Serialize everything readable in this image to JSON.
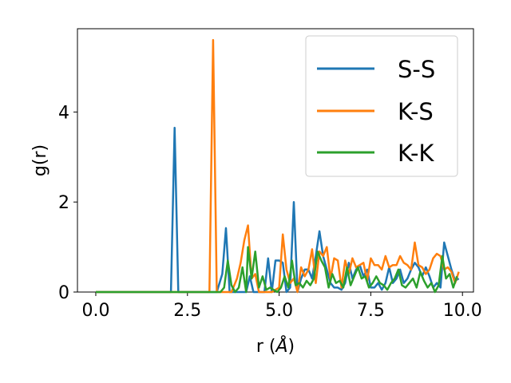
{
  "chart_data": {
    "type": "line",
    "xlabel": "r (",
    "xlabel_unit": "Å",
    "xlabel_close": ")",
    "ylabel": "g(r)",
    "xlim": [
      -0.5,
      10.3
    ],
    "ylim": [
      0,
      5.85
    ],
    "xticks": [
      0.0,
      2.5,
      5.0,
      7.5,
      10.0
    ],
    "xtick_labels": [
      "0.0",
      "2.5",
      "5.0",
      "7.5",
      "10.0"
    ],
    "yticks": [
      0,
      2,
      4
    ],
    "ytick_labels": [
      "0",
      "2",
      "4"
    ],
    "grid": false,
    "legend_position": "top-right",
    "series": [
      {
        "name": "S-S",
        "color": "#1f77b4",
        "points": [
          [
            0,
            0
          ],
          [
            2.0,
            0
          ],
          [
            2.05,
            0
          ],
          [
            2.15,
            3.65
          ],
          [
            2.25,
            0
          ],
          [
            3.2,
            0
          ],
          [
            3.3,
            0
          ],
          [
            3.45,
            0.4
          ],
          [
            3.55,
            1.42
          ],
          [
            3.65,
            0
          ],
          [
            4.1,
            0
          ],
          [
            4.2,
            0.35
          ],
          [
            4.3,
            0
          ],
          [
            4.45,
            0
          ],
          [
            4.6,
            0
          ],
          [
            4.7,
            0.75
          ],
          [
            4.8,
            0
          ],
          [
            4.9,
            0.7
          ],
          [
            5.0,
            0.7
          ],
          [
            5.1,
            0.65
          ],
          [
            5.2,
            0
          ],
          [
            5.3,
            0.1
          ],
          [
            5.4,
            2.0
          ],
          [
            5.5,
            0
          ],
          [
            5.6,
            0.3
          ],
          [
            5.7,
            0.5
          ],
          [
            5.8,
            0.5
          ],
          [
            5.9,
            0.3
          ],
          [
            6.0,
            0.8
          ],
          [
            6.1,
            1.35
          ],
          [
            6.2,
            0.8
          ],
          [
            6.3,
            0.5
          ],
          [
            6.4,
            0.2
          ],
          [
            6.5,
            0.1
          ],
          [
            6.6,
            0.1
          ],
          [
            6.7,
            0.05
          ],
          [
            6.8,
            0.2
          ],
          [
            6.9,
            0.65
          ],
          [
            7.0,
            0.3
          ],
          [
            7.1,
            0.5
          ],
          [
            7.2,
            0.6
          ],
          [
            7.3,
            0.35
          ],
          [
            7.4,
            0.5
          ],
          [
            7.5,
            0.1
          ],
          [
            7.6,
            0.1
          ],
          [
            7.7,
            0.2
          ],
          [
            7.8,
            0.05
          ],
          [
            7.9,
            0.2
          ],
          [
            8.0,
            0.55
          ],
          [
            8.1,
            0.2
          ],
          [
            8.2,
            0.3
          ],
          [
            8.3,
            0.5
          ],
          [
            8.4,
            0.2
          ],
          [
            8.5,
            0.3
          ],
          [
            8.6,
            0.5
          ],
          [
            8.7,
            0.65
          ],
          [
            8.8,
            0.55
          ],
          [
            8.9,
            0.35
          ],
          [
            9.0,
            0.55
          ],
          [
            9.1,
            0.35
          ],
          [
            9.2,
            0.1
          ],
          [
            9.3,
            0.2
          ],
          [
            9.4,
            0.1
          ],
          [
            9.5,
            1.1
          ],
          [
            9.6,
            0.8
          ],
          [
            9.7,
            0.5
          ],
          [
            9.8,
            0.25
          ],
          [
            9.9,
            0.3
          ]
        ]
      },
      {
        "name": "K-S",
        "color": "#ff7f0e",
        "points": [
          [
            0,
            0
          ],
          [
            3.0,
            0
          ],
          [
            3.1,
            0
          ],
          [
            3.2,
            5.6
          ],
          [
            3.3,
            0
          ],
          [
            3.7,
            0
          ],
          [
            3.85,
            0.3
          ],
          [
            3.95,
            0.65
          ],
          [
            4.05,
            1.15
          ],
          [
            4.15,
            1.48
          ],
          [
            4.25,
            0.3
          ],
          [
            4.35,
            0.4
          ],
          [
            4.45,
            0
          ],
          [
            4.6,
            0
          ],
          [
            4.8,
            0
          ],
          [
            5.0,
            0.1
          ],
          [
            5.1,
            1.28
          ],
          [
            5.2,
            0.5
          ],
          [
            5.3,
            0.2
          ],
          [
            5.4,
            0.3
          ],
          [
            5.5,
            0
          ],
          [
            5.6,
            0.55
          ],
          [
            5.7,
            0.35
          ],
          [
            5.8,
            0.5
          ],
          [
            5.9,
            0.95
          ],
          [
            6.0,
            0.2
          ],
          [
            6.1,
            0.9
          ],
          [
            6.2,
            0.8
          ],
          [
            6.3,
            1.0
          ],
          [
            6.4,
            0.3
          ],
          [
            6.5,
            0.75
          ],
          [
            6.6,
            0.7
          ],
          [
            6.7,
            0.1
          ],
          [
            6.8,
            0.7
          ],
          [
            6.9,
            0.4
          ],
          [
            7.0,
            0.75
          ],
          [
            7.1,
            0.55
          ],
          [
            7.2,
            0.6
          ],
          [
            7.3,
            0.65
          ],
          [
            7.4,
            0.25
          ],
          [
            7.5,
            0.75
          ],
          [
            7.6,
            0.6
          ],
          [
            7.7,
            0.6
          ],
          [
            7.8,
            0.5
          ],
          [
            7.9,
            0.8
          ],
          [
            8.0,
            0.55
          ],
          [
            8.1,
            0.6
          ],
          [
            8.2,
            0.6
          ],
          [
            8.3,
            0.8
          ],
          [
            8.4,
            0.65
          ],
          [
            8.5,
            0.6
          ],
          [
            8.6,
            0.5
          ],
          [
            8.7,
            1.1
          ],
          [
            8.8,
            0.6
          ],
          [
            8.9,
            0.55
          ],
          [
            9.0,
            0.4
          ],
          [
            9.1,
            0.5
          ],
          [
            9.2,
            0.75
          ],
          [
            9.3,
            0.85
          ],
          [
            9.4,
            0.8
          ],
          [
            9.5,
            0.5
          ],
          [
            9.6,
            0.55
          ],
          [
            9.7,
            0.45
          ],
          [
            9.8,
            0.2
          ],
          [
            9.9,
            0.45
          ]
        ]
      },
      {
        "name": "K-K",
        "color": "#2ca02c",
        "points": [
          [
            0,
            0
          ],
          [
            3.4,
            0
          ],
          [
            3.5,
            0.1
          ],
          [
            3.6,
            0.7
          ],
          [
            3.7,
            0.15
          ],
          [
            3.8,
            0
          ],
          [
            3.9,
            0.1
          ],
          [
            4.0,
            0.55
          ],
          [
            4.1,
            0
          ],
          [
            4.15,
            1.0
          ],
          [
            4.25,
            0.3
          ],
          [
            4.35,
            0.9
          ],
          [
            4.45,
            0.1
          ],
          [
            4.55,
            0.35
          ],
          [
            4.65,
            0.05
          ],
          [
            4.75,
            0.1
          ],
          [
            4.85,
            0.05
          ],
          [
            4.95,
            0
          ],
          [
            5.05,
            0.1
          ],
          [
            5.15,
            0.35
          ],
          [
            5.25,
            0.1
          ],
          [
            5.35,
            0.7
          ],
          [
            5.45,
            0.15
          ],
          [
            5.55,
            0.2
          ],
          [
            5.65,
            0.1
          ],
          [
            5.75,
            0.25
          ],
          [
            5.85,
            0.15
          ],
          [
            5.95,
            0.3
          ],
          [
            6.05,
            0.9
          ],
          [
            6.15,
            0.7
          ],
          [
            6.25,
            0.55
          ],
          [
            6.35,
            0.1
          ],
          [
            6.45,
            0.4
          ],
          [
            6.55,
            0.2
          ],
          [
            6.65,
            0.25
          ],
          [
            6.75,
            0.1
          ],
          [
            6.85,
            0.55
          ],
          [
            6.95,
            0.15
          ],
          [
            7.05,
            0.35
          ],
          [
            7.15,
            0.55
          ],
          [
            7.25,
            0.3
          ],
          [
            7.35,
            0.35
          ],
          [
            7.45,
            0.1
          ],
          [
            7.55,
            0.2
          ],
          [
            7.65,
            0.35
          ],
          [
            7.75,
            0.2
          ],
          [
            7.85,
            0.15
          ],
          [
            7.95,
            0.05
          ],
          [
            8.05,
            0.2
          ],
          [
            8.15,
            0.3
          ],
          [
            8.25,
            0.5
          ],
          [
            8.35,
            0.15
          ],
          [
            8.45,
            0.1
          ],
          [
            8.55,
            0.2
          ],
          [
            8.65,
            0.3
          ],
          [
            8.75,
            0.1
          ],
          [
            8.85,
            0.45
          ],
          [
            8.95,
            0.25
          ],
          [
            9.05,
            0.1
          ],
          [
            9.15,
            0.2
          ],
          [
            9.25,
            0
          ],
          [
            9.35,
            0.15
          ],
          [
            9.45,
            0.8
          ],
          [
            9.55,
            0.3
          ],
          [
            9.65,
            0.4
          ],
          [
            9.75,
            0.1
          ],
          [
            9.85,
            0.35
          ]
        ]
      }
    ]
  }
}
